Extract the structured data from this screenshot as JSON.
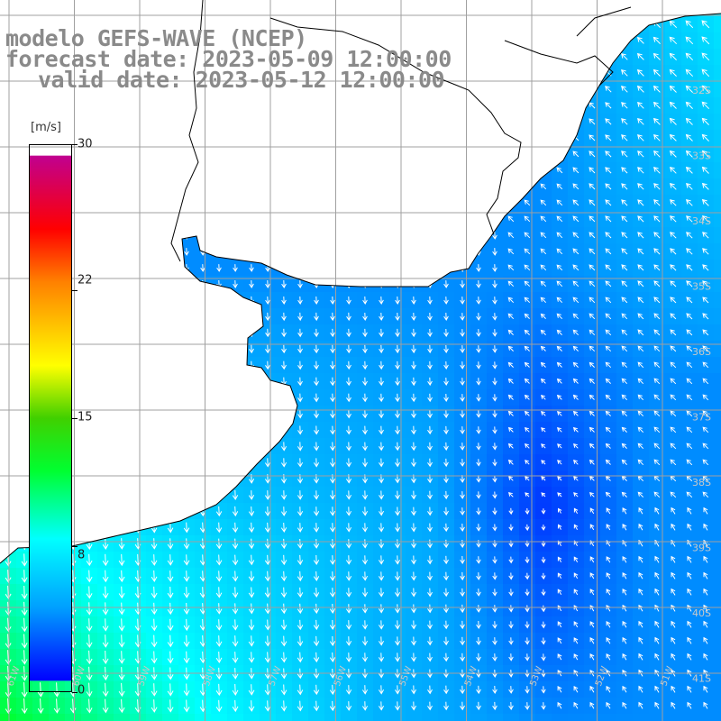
{
  "titles": {
    "line1": "modelo GEFS-WAVE (NCEP)",
    "line2": "forecast date: 2023-05-09 12:00:00",
    "line3": "valid date: 2023-05-12 12:00:00"
  },
  "colorbar": {
    "unit": "[m/s]",
    "ticks": [
      "30",
      "22",
      "15",
      "8",
      "0"
    ],
    "tick_values": [
      30,
      22,
      15,
      8,
      0
    ],
    "min": 0,
    "max": 30,
    "colors": [
      "#0000ff",
      "#00a0ff",
      "#00ffff",
      "#00ff30",
      "#40d000",
      "#ffff00",
      "#ff8000",
      "#ff0000",
      "#c00090"
    ]
  },
  "lat_labels": [
    "32S",
    "33S",
    "34S",
    "35S",
    "36S",
    "37S",
    "38S",
    "39S",
    "40S",
    "41S"
  ],
  "lon_labels": [
    "61W",
    "60W",
    "59W",
    "58W",
    "57W",
    "56W",
    "55W",
    "54W",
    "53W",
    "52W",
    "51W"
  ],
  "colors": {
    "land": "#ffffff",
    "grid": "#a0a0a0",
    "coast": "#000000",
    "arrows": "#ffffff",
    "title": "#8a8a8a"
  }
}
